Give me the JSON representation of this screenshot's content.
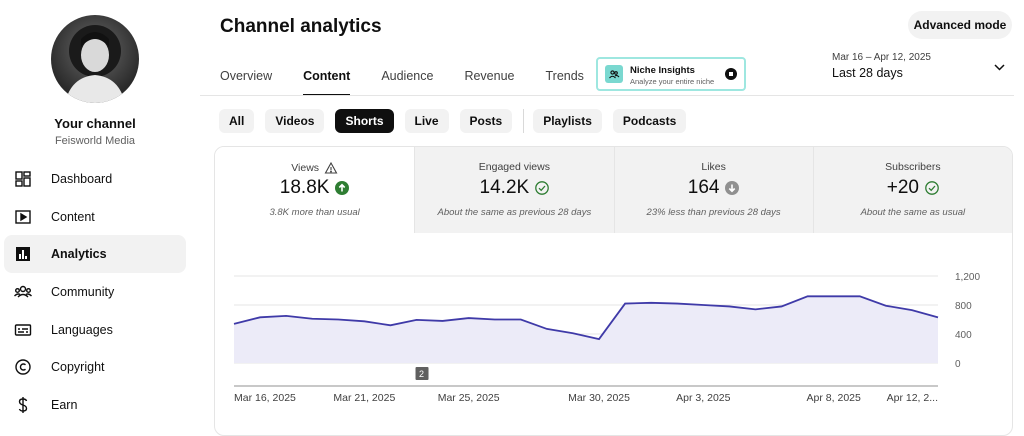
{
  "sidebar": {
    "channel_title": "Your channel",
    "channel_name": "Feisworld Media",
    "items": [
      {
        "label": "Dashboard",
        "icon": "dashboard-icon",
        "active": false
      },
      {
        "label": "Content",
        "icon": "content-icon",
        "active": false
      },
      {
        "label": "Analytics",
        "icon": "analytics-icon",
        "active": true
      },
      {
        "label": "Community",
        "icon": "community-icon",
        "active": false
      },
      {
        "label": "Languages",
        "icon": "languages-icon",
        "active": false
      },
      {
        "label": "Copyright",
        "icon": "copyright-icon",
        "active": false
      },
      {
        "label": "Earn",
        "icon": "earn-icon",
        "active": false
      }
    ]
  },
  "header": {
    "title": "Channel analytics",
    "advanced_mode": "Advanced mode",
    "tabs": [
      "Overview",
      "Content",
      "Audience",
      "Revenue",
      "Trends"
    ],
    "active_tab": "Content",
    "niche": {
      "title": "Niche Insights",
      "subtitle": "Analyze your entire niche"
    },
    "date_range": "Mar 16 – Apr 12, 2025",
    "date_label": "Last 28 days"
  },
  "filters": {
    "chips": [
      "All",
      "Videos",
      "Shorts",
      "Live",
      "Posts",
      "Playlists",
      "Podcasts"
    ],
    "active": "Shorts"
  },
  "metrics": [
    {
      "label": "Views",
      "value": "18.8K",
      "sub": "3.8K more than usual",
      "status": "up",
      "warning": true
    },
    {
      "label": "Engaged views",
      "value": "14.2K",
      "sub": "About the same as previous 28 days",
      "status": "same",
      "warning": false
    },
    {
      "label": "Likes",
      "value": "164",
      "sub": "23% less than previous 28 days",
      "status": "down",
      "warning": false
    },
    {
      "label": "Subscribers",
      "value": "+20",
      "sub": "About the same as usual",
      "status": "same",
      "warning": false
    }
  ],
  "colors": {
    "line": "#3f3aa8",
    "fill": "#ecebf8",
    "up": "#2e7d32",
    "down": "#909090",
    "same": "#2e7d32"
  },
  "chart_data": {
    "type": "area",
    "x": [
      "Mar 16",
      "Mar 17",
      "Mar 18",
      "Mar 19",
      "Mar 20",
      "Mar 21",
      "Mar 22",
      "Mar 23",
      "Mar 24",
      "Mar 25",
      "Mar 26",
      "Mar 27",
      "Mar 28",
      "Mar 29",
      "Mar 30",
      "Mar 31",
      "Apr 1",
      "Apr 2",
      "Apr 3",
      "Apr 4",
      "Apr 5",
      "Apr 6",
      "Apr 7",
      "Apr 8",
      "Apr 9",
      "Apr 10",
      "Apr 11",
      "Apr 12"
    ],
    "series": [
      {
        "values": [
          540,
          630,
          650,
          610,
          600,
          575,
          520,
          595,
          580,
          620,
          600,
          600,
          470,
          410,
          330,
          820,
          830,
          820,
          800,
          780,
          740,
          780,
          920,
          920,
          920,
          790,
          730,
          630
        ]
      }
    ],
    "x_tick_labels": [
      "Mar 16, 2025",
      "Mar 21, 2025",
      "Mar 25, 2025",
      "Mar 30, 2025",
      "Apr 3, 2025",
      "Apr 8, 2025",
      "Apr 12, 2..."
    ],
    "y_ticks": [
      0,
      400,
      800,
      1200
    ],
    "y_tick_labels": [
      "0",
      "400",
      "800",
      "1,200"
    ],
    "ylim": [
      0,
      1200
    ],
    "marker": {
      "label": "2",
      "date": "Mar 23"
    },
    "grid": true
  }
}
